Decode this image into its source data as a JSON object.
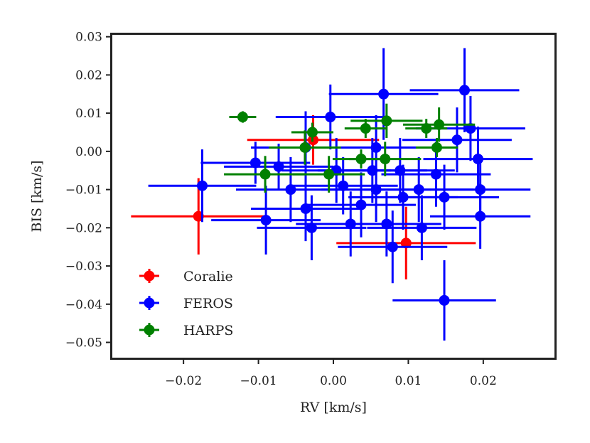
{
  "chart_data": {
    "type": "scatter",
    "title": "",
    "xlabel": "RV [km/s]",
    "ylabel": "BIS [km/s]",
    "xlim": [
      -0.0295,
      0.0295
    ],
    "ylim": [
      -0.054,
      0.0305
    ],
    "xticks": [
      -0.02,
      -0.01,
      0.0,
      0.01,
      0.02
    ],
    "xtick_labels": [
      "−0.02",
      "−0.01",
      "0.00",
      "0.01",
      "0.02"
    ],
    "yticks": [
      0.03,
      0.02,
      0.01,
      0.0,
      -0.01,
      -0.02,
      -0.03,
      -0.04,
      -0.05
    ],
    "ytick_labels": [
      "0.03",
      "0.02",
      "0.01",
      "0.00",
      "−0.01",
      "−0.02",
      "−0.03",
      "−0.04",
      "−0.05"
    ],
    "grid": false,
    "legend_position": "bottom-left",
    "series": [
      {
        "name": "Coralie",
        "color": "#ff0000",
        "points": [
          {
            "x": -0.018,
            "y": -0.017,
            "xerr": 0.009,
            "yerr": 0.01
          },
          {
            "x": -0.0027,
            "y": 0.003,
            "xerr": 0.0088,
            "yerr": 0.0065
          },
          {
            "x": 0.0097,
            "y": -0.024,
            "xerr": 0.0093,
            "yerr": 0.0095
          }
        ]
      },
      {
        "name": "FEROS",
        "color": "#0000ff",
        "points": [
          {
            "x": -0.0175,
            "y": -0.009,
            "xerr": 0.0072,
            "yerr": 0.0095
          },
          {
            "x": -0.0104,
            "y": -0.003,
            "xerr": 0.0073,
            "yerr": 0.0055
          },
          {
            "x": -0.009,
            "y": -0.018,
            "xerr": 0.0073,
            "yerr": 0.009
          },
          {
            "x": -0.0073,
            "y": -0.004,
            "xerr": 0.0073,
            "yerr": 0.006
          },
          {
            "x": -0.0057,
            "y": -0.01,
            "xerr": 0.0073,
            "yerr": 0.0085
          },
          {
            "x": -0.0037,
            "y": 0.001,
            "xerr": 0.0073,
            "yerr": 0.0095
          },
          {
            "x": -0.0037,
            "y": -0.015,
            "xerr": 0.0073,
            "yerr": 0.0085
          },
          {
            "x": -0.0029,
            "y": -0.02,
            "xerr": 0.0073,
            "yerr": 0.0085
          },
          {
            "x": -0.0004,
            "y": 0.009,
            "xerr": 0.0073,
            "yerr": 0.0085
          },
          {
            "x": 0.0004,
            "y": -0.005,
            "xerr": 0.0073,
            "yerr": 0.0085
          },
          {
            "x": 0.0013,
            "y": -0.009,
            "xerr": 0.0073,
            "yerr": 0.0075
          },
          {
            "x": 0.0023,
            "y": -0.019,
            "xerr": 0.0073,
            "yerr": 0.0085
          },
          {
            "x": 0.0037,
            "y": -0.014,
            "xerr": 0.0073,
            "yerr": 0.0085
          },
          {
            "x": 0.0052,
            "y": -0.005,
            "xerr": 0.0073,
            "yerr": 0.0085
          },
          {
            "x": 0.0057,
            "y": 0.001,
            "xerr": 0.0073,
            "yerr": 0.0085
          },
          {
            "x": 0.0057,
            "y": -0.01,
            "xerr": 0.0073,
            "yerr": 0.0085
          },
          {
            "x": 0.0067,
            "y": 0.015,
            "xerr": 0.0073,
            "yerr": 0.012
          },
          {
            "x": 0.0071,
            "y": -0.019,
            "xerr": 0.0073,
            "yerr": 0.0085
          },
          {
            "x": 0.0079,
            "y": -0.025,
            "xerr": 0.0073,
            "yerr": 0.0095
          },
          {
            "x": 0.0089,
            "y": -0.005,
            "xerr": 0.0073,
            "yerr": 0.0085
          },
          {
            "x": 0.0093,
            "y": -0.012,
            "xerr": 0.0073,
            "yerr": 0.0085
          },
          {
            "x": 0.0114,
            "y": -0.01,
            "xerr": 0.0073,
            "yerr": 0.0085
          },
          {
            "x": 0.0118,
            "y": -0.02,
            "xerr": 0.0073,
            "yerr": 0.0085
          },
          {
            "x": 0.0137,
            "y": -0.006,
            "xerr": 0.0073,
            "yerr": 0.0085
          },
          {
            "x": 0.0148,
            "y": -0.012,
            "xerr": 0.0073,
            "yerr": 0.0085
          },
          {
            "x": 0.0148,
            "y": -0.039,
            "xerr": 0.0069,
            "yerr": 0.0105
          },
          {
            "x": 0.0165,
            "y": 0.003,
            "xerr": 0.0073,
            "yerr": 0.0085
          },
          {
            "x": 0.0175,
            "y": 0.016,
            "xerr": 0.0073,
            "yerr": 0.011
          },
          {
            "x": 0.0183,
            "y": 0.006,
            "xerr": 0.0073,
            "yerr": 0.0085
          },
          {
            "x": 0.0193,
            "y": -0.002,
            "xerr": 0.0073,
            "yerr": 0.0085
          },
          {
            "x": 0.0196,
            "y": -0.01,
            "xerr": 0.0067,
            "yerr": 0.0085
          },
          {
            "x": 0.0196,
            "y": -0.017,
            "xerr": 0.0067,
            "yerr": 0.0085
          }
        ]
      },
      {
        "name": "HARPS",
        "color": "#008000",
        "points": [
          {
            "x": -0.0121,
            "y": 0.009,
            "xerr": 0.0018,
            "yerr": 0.0015
          },
          {
            "x": -0.0091,
            "y": -0.006,
            "xerr": 0.0055,
            "yerr": 0.0048
          },
          {
            "x": -0.0038,
            "y": 0.001,
            "xerr": 0.0048,
            "yerr": 0.0045
          },
          {
            "x": -0.0028,
            "y": 0.005,
            "xerr": 0.0028,
            "yerr": 0.0025
          },
          {
            "x": -0.0006,
            "y": -0.006,
            "xerr": 0.0048,
            "yerr": 0.0048
          },
          {
            "x": 0.0037,
            "y": -0.002,
            "xerr": 0.0038,
            "yerr": 0.0025
          },
          {
            "x": 0.0043,
            "y": 0.006,
            "xerr": 0.0028,
            "yerr": 0.0025
          },
          {
            "x": 0.0069,
            "y": -0.002,
            "xerr": 0.0048,
            "yerr": 0.0045
          },
          {
            "x": 0.0071,
            "y": 0.008,
            "xerr": 0.0048,
            "yerr": 0.0045
          },
          {
            "x": 0.0124,
            "y": 0.006,
            "xerr": 0.0028,
            "yerr": 0.0025
          },
          {
            "x": 0.0138,
            "y": 0.001,
            "xerr": 0.0028,
            "yerr": 0.0025
          },
          {
            "x": 0.0141,
            "y": 0.007,
            "xerr": 0.0048,
            "yerr": 0.0045
          }
        ]
      }
    ]
  }
}
